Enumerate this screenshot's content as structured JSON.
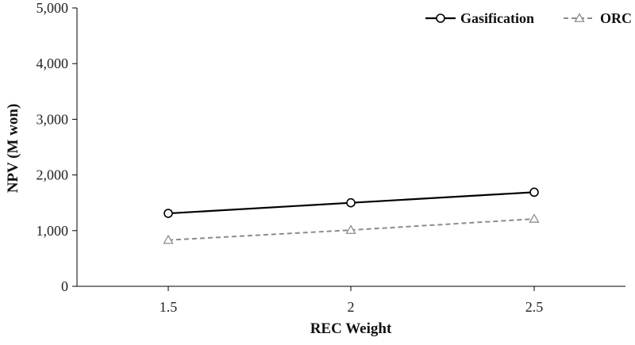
{
  "chart_data": {
    "type": "line",
    "title": "",
    "xlabel": "REC Weight",
    "ylabel": "NPV (M won)",
    "categories": [
      "1.5",
      "2",
      "2.5"
    ],
    "ylim": [
      0,
      5000
    ],
    "yticks": [
      0,
      1000,
      2000,
      3000,
      4000,
      5000
    ],
    "ytick_labels": [
      "0",
      "1,000",
      "2,000",
      "3,000",
      "4,000",
      "5,000"
    ],
    "grid": false,
    "legend_position": "top-right",
    "series": [
      {
        "name": "Gasification",
        "values": [
          1310,
          1500,
          1690
        ],
        "color": "#000000",
        "line": "solid",
        "marker": "circle"
      },
      {
        "name": "ORC",
        "values": [
          830,
          1010,
          1210
        ],
        "color": "#8c8c8c",
        "line": "dashed",
        "marker": "triangle"
      }
    ]
  }
}
